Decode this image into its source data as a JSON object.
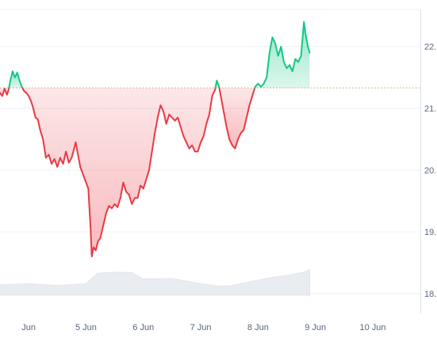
{
  "chart_data": {
    "type": "area",
    "baseline": 21.33,
    "ylim": [
      18.0,
      22.6
    ],
    "y_ticks": [
      {
        "value": 22,
        "label": "22."
      },
      {
        "value": 21,
        "label": "21."
      },
      {
        "value": 20,
        "label": "20."
      },
      {
        "value": 19,
        "label": "19."
      },
      {
        "value": 18,
        "label": "18."
      }
    ],
    "xlim": [
      3.5,
      10.83
    ],
    "x_ticks": [
      {
        "value": 4,
        "label": "Jun"
      },
      {
        "value": 5,
        "label": "5 Jun"
      },
      {
        "value": 6,
        "label": "6 Jun"
      },
      {
        "value": 7,
        "label": "7 Jun"
      },
      {
        "value": 8,
        "label": "8 Jun"
      },
      {
        "value": 9,
        "label": "9 Jun"
      },
      {
        "value": 10,
        "label": "10 Jun"
      }
    ],
    "colors": {
      "above": "#16c784",
      "below": "#ea3943",
      "above_fill": "#16c784",
      "below_fill": "#ea3943",
      "baseline": "#c9a06a",
      "grid": "#eff2f5",
      "volume": "#e9ecf1"
    },
    "price": [
      [
        3.5,
        21.25
      ],
      [
        3.54,
        21.2
      ],
      [
        3.58,
        21.32
      ],
      [
        3.62,
        21.22
      ],
      [
        3.65,
        21.3
      ],
      [
        3.68,
        21.45
      ],
      [
        3.72,
        21.6
      ],
      [
        3.76,
        21.5
      ],
      [
        3.8,
        21.58
      ],
      [
        3.84,
        21.45
      ],
      [
        3.88,
        21.35
      ],
      [
        3.92,
        21.28
      ],
      [
        3.96,
        21.25
      ],
      [
        4.0,
        21.2
      ],
      [
        4.04,
        21.12
      ],
      [
        4.08,
        21.0
      ],
      [
        4.12,
        20.85
      ],
      [
        4.16,
        20.82
      ],
      [
        4.2,
        20.65
      ],
      [
        4.25,
        20.5
      ],
      [
        4.3,
        20.2
      ],
      [
        4.35,
        20.25
      ],
      [
        4.4,
        20.1
      ],
      [
        4.45,
        20.18
      ],
      [
        4.5,
        20.05
      ],
      [
        4.55,
        20.2
      ],
      [
        4.6,
        20.1
      ],
      [
        4.65,
        20.3
      ],
      [
        4.7,
        20.12
      ],
      [
        4.75,
        20.2
      ],
      [
        4.82,
        20.45
      ],
      [
        4.86,
        20.25
      ],
      [
        4.9,
        20.05
      ],
      [
        4.94,
        19.95
      ],
      [
        5.0,
        19.8
      ],
      [
        5.04,
        19.7
      ],
      [
        5.08,
        19.05
      ],
      [
        5.1,
        18.6
      ],
      [
        5.13,
        18.75
      ],
      [
        5.17,
        18.7
      ],
      [
        5.21,
        18.85
      ],
      [
        5.25,
        18.9
      ],
      [
        5.3,
        19.1
      ],
      [
        5.35,
        19.3
      ],
      [
        5.4,
        19.42
      ],
      [
        5.45,
        19.38
      ],
      [
        5.5,
        19.45
      ],
      [
        5.55,
        19.4
      ],
      [
        5.6,
        19.55
      ],
      [
        5.65,
        19.8
      ],
      [
        5.7,
        19.65
      ],
      [
        5.75,
        19.6
      ],
      [
        5.8,
        19.45
      ],
      [
        5.85,
        19.55
      ],
      [
        5.9,
        19.55
      ],
      [
        5.95,
        19.75
      ],
      [
        6.0,
        19.7
      ],
      [
        6.05,
        19.85
      ],
      [
        6.1,
        20.0
      ],
      [
        6.15,
        20.3
      ],
      [
        6.2,
        20.6
      ],
      [
        6.25,
        20.85
      ],
      [
        6.3,
        21.05
      ],
      [
        6.35,
        20.95
      ],
      [
        6.4,
        20.75
      ],
      [
        6.45,
        20.9
      ],
      [
        6.5,
        20.85
      ],
      [
        6.55,
        20.8
      ],
      [
        6.6,
        20.85
      ],
      [
        6.65,
        20.7
      ],
      [
        6.7,
        20.55
      ],
      [
        6.75,
        20.45
      ],
      [
        6.8,
        20.35
      ],
      [
        6.85,
        20.4
      ],
      [
        6.9,
        20.3
      ],
      [
        6.95,
        20.3
      ],
      [
        7.0,
        20.45
      ],
      [
        7.05,
        20.55
      ],
      [
        7.1,
        20.75
      ],
      [
        7.15,
        20.9
      ],
      [
        7.2,
        21.2
      ],
      [
        7.25,
        21.3
      ],
      [
        7.28,
        21.45
      ],
      [
        7.32,
        21.35
      ],
      [
        7.36,
        21.15
      ],
      [
        7.4,
        20.95
      ],
      [
        7.45,
        20.7
      ],
      [
        7.5,
        20.5
      ],
      [
        7.55,
        20.4
      ],
      [
        7.6,
        20.35
      ],
      [
        7.65,
        20.5
      ],
      [
        7.7,
        20.6
      ],
      [
        7.75,
        20.65
      ],
      [
        7.8,
        20.85
      ],
      [
        7.85,
        21.05
      ],
      [
        7.9,
        21.2
      ],
      [
        7.95,
        21.35
      ],
      [
        8.0,
        21.4
      ],
      [
        8.05,
        21.35
      ],
      [
        8.1,
        21.4
      ],
      [
        8.15,
        21.5
      ],
      [
        8.2,
        21.9
      ],
      [
        8.25,
        22.15
      ],
      [
        8.3,
        22.05
      ],
      [
        8.35,
        21.85
      ],
      [
        8.4,
        22.0
      ],
      [
        8.45,
        21.75
      ],
      [
        8.5,
        21.65
      ],
      [
        8.55,
        21.7
      ],
      [
        8.6,
        21.6
      ],
      [
        8.65,
        21.8
      ],
      [
        8.7,
        21.75
      ],
      [
        8.75,
        21.85
      ],
      [
        8.8,
        22.4
      ],
      [
        8.83,
        22.2
      ],
      [
        8.87,
        22.0
      ],
      [
        8.9,
        21.9
      ]
    ],
    "volume": [
      [
        3.5,
        0.45
      ],
      [
        4.0,
        0.5
      ],
      [
        4.5,
        0.42
      ],
      [
        5.0,
        0.5
      ],
      [
        5.2,
        0.95
      ],
      [
        5.5,
        1.0
      ],
      [
        5.8,
        0.98
      ],
      [
        6.0,
        0.7
      ],
      [
        6.5,
        0.72
      ],
      [
        7.0,
        0.5
      ],
      [
        7.3,
        0.4
      ],
      [
        7.5,
        0.4
      ],
      [
        7.8,
        0.55
      ],
      [
        8.2,
        0.75
      ],
      [
        8.5,
        0.85
      ],
      [
        8.8,
        1.0
      ],
      [
        8.9,
        1.1
      ]
    ]
  }
}
